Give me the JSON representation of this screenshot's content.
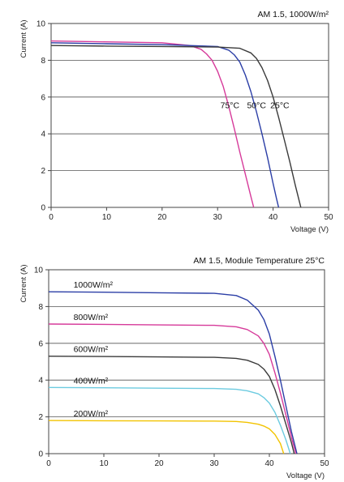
{
  "chart_data": [
    {
      "type": "line",
      "annotation": "AM 1.5, 1000W/m²",
      "xlabel": "Voltage (V)",
      "ylabel": "Current (A)",
      "xlim": [
        0,
        50
      ],
      "ylim": [
        0,
        10
      ],
      "xticks": [
        0,
        10,
        20,
        30,
        40,
        50
      ],
      "yticks": [
        0,
        2,
        4,
        6,
        8,
        10
      ],
      "grid": "horizontal",
      "series": [
        {
          "name": "75°C",
          "color": "#d63a9a",
          "x": [
            0,
            10,
            20,
            25,
            27,
            28,
            29,
            30,
            31,
            32,
            33,
            34,
            35,
            36,
            36.5
          ],
          "y": [
            9.05,
            9.0,
            8.95,
            8.8,
            8.6,
            8.35,
            8.0,
            7.4,
            6.6,
            5.5,
            4.3,
            3.0,
            1.8,
            0.6,
            0
          ]
        },
        {
          "name": "50°C",
          "color": "#2b3ea6",
          "x": [
            0,
            10,
            20,
            30,
            32,
            33,
            34,
            35,
            36,
            37,
            38,
            39,
            40,
            40.6,
            41
          ],
          "y": [
            8.95,
            8.9,
            8.85,
            8.75,
            8.55,
            8.3,
            7.9,
            7.2,
            6.3,
            5.2,
            4.0,
            2.7,
            1.3,
            0.5,
            0
          ]
        },
        {
          "name": "25°C",
          "color": "#3a3a3a",
          "x": [
            0,
            10,
            20,
            30,
            34,
            36,
            37,
            38,
            39,
            40,
            41,
            42,
            43,
            44,
            45
          ],
          "y": [
            8.8,
            8.77,
            8.75,
            8.72,
            8.65,
            8.4,
            8.1,
            7.6,
            6.9,
            6.0,
            4.9,
            3.7,
            2.5,
            1.2,
            0
          ]
        }
      ]
    },
    {
      "type": "line",
      "annotation": "AM 1.5, Module Temperature 25°C",
      "xlabel": "Voltage (V)",
      "ylabel": "Current (A)",
      "xlim": [
        0,
        50
      ],
      "ylim": [
        0,
        10
      ],
      "xticks": [
        0,
        10,
        20,
        30,
        40,
        50
      ],
      "yticks": [
        0,
        2,
        4,
        6,
        8,
        10
      ],
      "grid": "horizontal",
      "series": [
        {
          "name": "1000W/m²",
          "color": "#2b3ea6",
          "x": [
            0,
            10,
            20,
            30,
            34,
            36,
            38,
            39,
            40,
            41,
            42,
            43,
            44,
            45
          ],
          "y": [
            8.8,
            8.78,
            8.75,
            8.72,
            8.6,
            8.35,
            7.8,
            7.3,
            6.5,
            5.3,
            4.0,
            2.6,
            1.2,
            0
          ]
        },
        {
          "name": "800W/m²",
          "color": "#d63a9a",
          "x": [
            0,
            10,
            20,
            30,
            34,
            36,
            38,
            39,
            40,
            41,
            42,
            43,
            44,
            44.8
          ],
          "y": [
            7.05,
            7.03,
            7.0,
            6.98,
            6.9,
            6.75,
            6.4,
            6.0,
            5.4,
            4.4,
            3.3,
            2.1,
            0.9,
            0
          ]
        },
        {
          "name": "600W/m²",
          "color": "#3a3a3a",
          "x": [
            0,
            10,
            20,
            30,
            34,
            36,
            38,
            39,
            40,
            41,
            42,
            43,
            44,
            44.5
          ],
          "y": [
            5.3,
            5.28,
            5.26,
            5.24,
            5.18,
            5.08,
            4.85,
            4.6,
            4.2,
            3.5,
            2.6,
            1.6,
            0.6,
            0
          ]
        },
        {
          "name": "400W/m²",
          "color": "#6ccbe0",
          "x": [
            0,
            10,
            20,
            30,
            34,
            36,
            38,
            39,
            40,
            41,
            42,
            43,
            43.8
          ],
          "y": [
            3.6,
            3.58,
            3.56,
            3.54,
            3.5,
            3.42,
            3.25,
            3.05,
            2.75,
            2.25,
            1.55,
            0.75,
            0
          ]
        },
        {
          "name": "200W/m²",
          "color": "#f2c300",
          "x": [
            0,
            10,
            20,
            30,
            34,
            36,
            38,
            39,
            40,
            41,
            42,
            42.6
          ],
          "y": [
            1.8,
            1.79,
            1.78,
            1.77,
            1.75,
            1.7,
            1.6,
            1.5,
            1.35,
            1.05,
            0.55,
            0
          ]
        }
      ]
    }
  ]
}
